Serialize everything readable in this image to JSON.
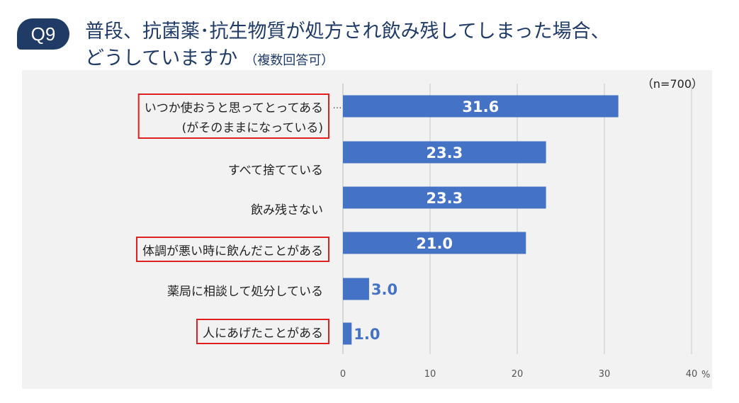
{
  "header": {
    "badge": "Q9",
    "title_line1": "普段、抗菌薬･抗生物質が処方され飲み残してしまった場合、",
    "title_line2": "どうしていますか",
    "subtitle": "（複数回答可）"
  },
  "chart_data": {
    "type": "bar",
    "orientation": "horizontal",
    "categories": [
      [
        "いつか使おうと思ってとってある",
        "(がそのままになっている)"
      ],
      [
        "すべて捨てている"
      ],
      [
        "飲み残さない"
      ],
      [
        "体調が悪い時に飲んだことがある"
      ],
      [
        "薬局に相談して処分している"
      ],
      [
        "人にあげたことがある"
      ]
    ],
    "highlighted": [
      true,
      false,
      false,
      true,
      false,
      true
    ],
    "values": [
      31.6,
      23.3,
      23.3,
      21.0,
      3.0,
      1.0
    ],
    "value_labels": [
      "31.6",
      "23.3",
      "23.3",
      "21.0",
      "3.0",
      "1.0"
    ],
    "xlim": [
      0,
      40
    ],
    "xticks": [
      "0",
      "10",
      "20",
      "30",
      "40"
    ],
    "unit": "%",
    "sample_note": "（n=700）",
    "overflow_mark": "…",
    "bar_color": "#4472c4",
    "highlight_color": "#e02020",
    "grid": true
  }
}
